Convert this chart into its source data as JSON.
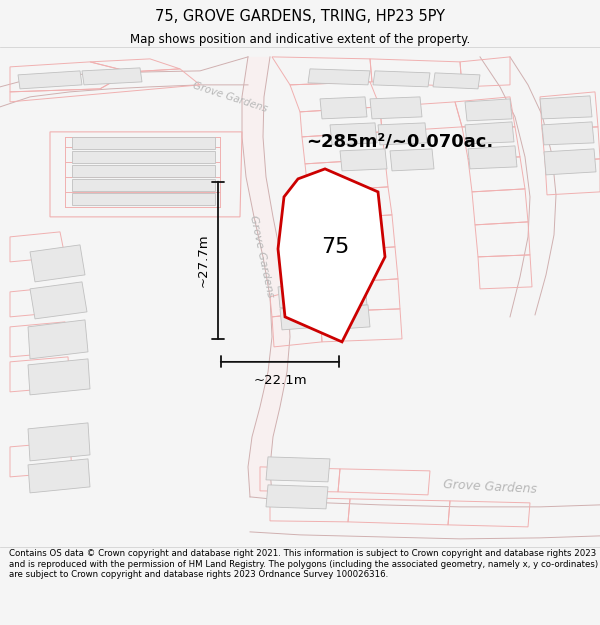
{
  "title": "75, GROVE GARDENS, TRING, HP23 5PY",
  "subtitle": "Map shows position and indicative extent of the property.",
  "area_text": "~285m²/~0.070ac.",
  "dim_width": "~22.1m",
  "dim_height": "~27.7m",
  "label_75": "75",
  "copyright_text": "Contains OS data © Crown copyright and database right 2021. This information is subject to Crown copyright and database rights 2023 and is reproduced with the permission of HM Land Registry. The polygons (including the associated geometry, namely x, y co-ordinates) are subject to Crown copyright and database rights 2023 Ordnance Survey 100026316.",
  "bg_color": "#f5f5f5",
  "map_bg": "#ffffff",
  "line_color": "#f0b0b0",
  "road_outline_color": "#c8c8c8",
  "building_fill": "#e8e8e8",
  "building_edge": "#c0c0c0",
  "plot_color": "#cc0000",
  "dim_color": "#111111",
  "road_label_color": "#b8b8b8",
  "figsize": [
    6.0,
    6.25
  ],
  "dpi": 100
}
